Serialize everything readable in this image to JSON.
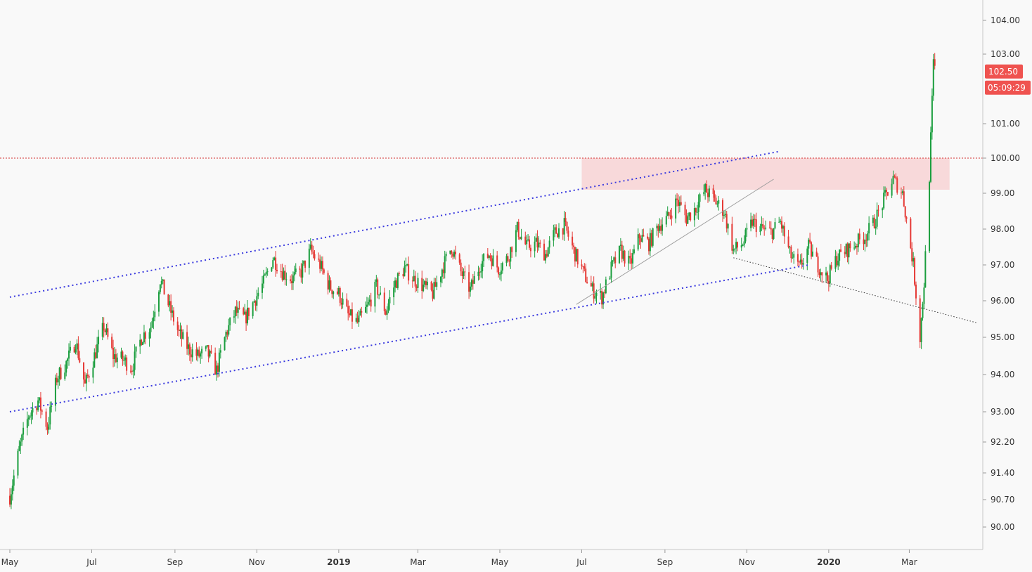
{
  "chart_data": {
    "type": "candlestick",
    "title": "",
    "xlabel": "",
    "ylabel": "",
    "x_range": [
      "2018-05-01",
      "2020-04-30"
    ],
    "y_range": [
      89.4,
      104.6
    ],
    "grid": false,
    "legend": "none",
    "y_ticks": [
      {
        "value": 104.0,
        "label": "104.00"
      },
      {
        "value": 103.0,
        "label": "103.00"
      },
      {
        "value": 101.0,
        "label": "101.00"
      },
      {
        "value": 100.0,
        "label": "100.00"
      },
      {
        "value": 99.0,
        "label": "99.00"
      },
      {
        "value": 98.0,
        "label": "98.00"
      },
      {
        "value": 97.0,
        "label": "97.00"
      },
      {
        "value": 96.0,
        "label": "96.00"
      },
      {
        "value": 95.0,
        "label": "95.00"
      },
      {
        "value": 94.0,
        "label": "94.00"
      },
      {
        "value": 93.0,
        "label": "93.00"
      },
      {
        "value": 92.2,
        "label": "92.20"
      },
      {
        "value": 91.4,
        "label": "91.40"
      },
      {
        "value": 90.7,
        "label": "90.70"
      },
      {
        "value": 90.0,
        "label": "90.00"
      }
    ],
    "x_ticks": [
      {
        "date": "2018-05-01",
        "label": "May",
        "bold": false
      },
      {
        "date": "2018-07-01",
        "label": "Jul",
        "bold": false
      },
      {
        "date": "2018-09-01",
        "label": "Sep",
        "bold": false
      },
      {
        "date": "2018-11-01",
        "label": "Nov",
        "bold": false
      },
      {
        "date": "2019-01-01",
        "label": "2019",
        "bold": true
      },
      {
        "date": "2019-03-01",
        "label": "Mar",
        "bold": false
      },
      {
        "date": "2019-05-01",
        "label": "May",
        "bold": false
      },
      {
        "date": "2019-07-01",
        "label": "Jul",
        "bold": false
      },
      {
        "date": "2019-09-01",
        "label": "Sep",
        "bold": false
      },
      {
        "date": "2019-11-01",
        "label": "Nov",
        "bold": false
      },
      {
        "date": "2020-01-01",
        "label": "2020",
        "bold": true
      },
      {
        "date": "2020-03-01",
        "label": "Mar",
        "bold": false
      }
    ],
    "price_path": [
      [
        "2018-05-01",
        90.8
      ],
      [
        "2018-05-08",
        92.0
      ],
      [
        "2018-05-15",
        92.9
      ],
      [
        "2018-05-22",
        93.3
      ],
      [
        "2018-05-29",
        92.6
      ],
      [
        "2018-06-05",
        93.9
      ],
      [
        "2018-06-12",
        94.3
      ],
      [
        "2018-06-19",
        94.9
      ],
      [
        "2018-06-26",
        93.7
      ],
      [
        "2018-07-03",
        94.5
      ],
      [
        "2018-07-10",
        95.3
      ],
      [
        "2018-07-17",
        94.5
      ],
      [
        "2018-07-24",
        94.4
      ],
      [
        "2018-07-31",
        94.2
      ],
      [
        "2018-08-07",
        95.0
      ],
      [
        "2018-08-14",
        95.3
      ],
      [
        "2018-08-21",
        96.6
      ],
      [
        "2018-08-28",
        95.8
      ],
      [
        "2018-09-04",
        95.1
      ],
      [
        "2018-09-11",
        94.7
      ],
      [
        "2018-09-18",
        94.5
      ],
      [
        "2018-09-25",
        94.6
      ],
      [
        "2018-10-02",
        94.1
      ],
      [
        "2018-10-09",
        95.1
      ],
      [
        "2018-10-16",
        95.7
      ],
      [
        "2018-10-23",
        95.5
      ],
      [
        "2018-10-30",
        96.0
      ],
      [
        "2018-11-06",
        96.5
      ],
      [
        "2018-11-13",
        97.2
      ],
      [
        "2018-11-20",
        96.8
      ],
      [
        "2018-11-27",
        96.6
      ],
      [
        "2018-12-04",
        96.8
      ],
      [
        "2018-12-11",
        97.4
      ],
      [
        "2018-12-18",
        97.0
      ],
      [
        "2018-12-25",
        96.4
      ],
      [
        "2019-01-01",
        96.2
      ],
      [
        "2019-01-08",
        95.6
      ],
      [
        "2019-01-15",
        95.4
      ],
      [
        "2019-01-22",
        95.8
      ],
      [
        "2019-01-29",
        96.4
      ],
      [
        "2019-02-05",
        95.7
      ],
      [
        "2019-02-12",
        96.5
      ],
      [
        "2019-02-19",
        96.9
      ],
      [
        "2019-02-26",
        96.6
      ],
      [
        "2019-03-05",
        96.4
      ],
      [
        "2019-03-12",
        96.2
      ],
      [
        "2019-03-19",
        96.9
      ],
      [
        "2019-03-26",
        97.5
      ],
      [
        "2019-04-02",
        96.8
      ],
      [
        "2019-04-09",
        96.3
      ],
      [
        "2019-04-16",
        97.0
      ],
      [
        "2019-04-23",
        97.3
      ],
      [
        "2019-04-30",
        96.9
      ],
      [
        "2019-05-07",
        97.2
      ],
      [
        "2019-05-14",
        98.0
      ],
      [
        "2019-05-21",
        97.5
      ],
      [
        "2019-05-28",
        97.6
      ],
      [
        "2019-06-04",
        97.3
      ],
      [
        "2019-06-11",
        97.9
      ],
      [
        "2019-06-18",
        98.1
      ],
      [
        "2019-06-25",
        97.4
      ],
      [
        "2019-07-02",
        96.8
      ],
      [
        "2019-07-09",
        96.3
      ],
      [
        "2019-07-16",
        96.1
      ],
      [
        "2019-07-23",
        96.9
      ],
      [
        "2019-07-30",
        97.4
      ],
      [
        "2019-08-06",
        97.0
      ],
      [
        "2019-08-13",
        97.8
      ],
      [
        "2019-08-20",
        97.6
      ],
      [
        "2019-08-27",
        98.1
      ],
      [
        "2019-09-03",
        98.3
      ],
      [
        "2019-09-10",
        98.8
      ],
      [
        "2019-09-17",
        98.3
      ],
      [
        "2019-09-24",
        98.6
      ],
      [
        "2019-10-01",
        99.1
      ],
      [
        "2019-10-08",
        98.8
      ],
      [
        "2019-10-15",
        98.5
      ],
      [
        "2019-10-22",
        97.4
      ],
      [
        "2019-10-29",
        97.6
      ],
      [
        "2019-11-05",
        98.2
      ],
      [
        "2019-11-12",
        98.0
      ],
      [
        "2019-11-19",
        97.9
      ],
      [
        "2019-11-26",
        98.2
      ],
      [
        "2019-12-03",
        97.3
      ],
      [
        "2019-12-10",
        96.9
      ],
      [
        "2019-12-17",
        97.5
      ],
      [
        "2019-12-24",
        97.0
      ],
      [
        "2019-12-31",
        96.6
      ],
      [
        "2020-01-07",
        97.2
      ],
      [
        "2020-01-14",
        97.4
      ],
      [
        "2020-01-21",
        97.6
      ],
      [
        "2020-01-28",
        97.8
      ],
      [
        "2020-02-04",
        98.2
      ],
      [
        "2020-02-11",
        98.8
      ],
      [
        "2020-02-18",
        99.4
      ],
      [
        "2020-02-25",
        99.0
      ],
      [
        "2020-02-29",
        98.0
      ],
      [
        "2020-03-04",
        97.0
      ],
      [
        "2020-03-09",
        95.0
      ],
      [
        "2020-03-12",
        96.5
      ],
      [
        "2020-03-16",
        99.5
      ],
      [
        "2020-03-19",
        102.7
      ],
      [
        "2020-03-21",
        102.5
      ]
    ],
    "annotations": {
      "resistance_line": {
        "value": 100.0,
        "color": "#d32f2f"
      },
      "supply_zone": {
        "from": "2019-07-01",
        "to": "2020-03-31",
        "low": 99.1,
        "high": 100.0,
        "color": "#f8d3d5"
      },
      "channel_upper": {
        "from": [
          "2018-05-01",
          96.1
        ],
        "to": [
          "2019-11-26",
          100.2
        ],
        "color": "#3b3bdf"
      },
      "channel_lower": {
        "from": [
          "2018-05-01",
          93.0
        ],
        "to": [
          "2019-12-17",
          97.0
        ],
        "color": "#3b3bdf"
      },
      "trendline_up": {
        "from": [
          "2019-06-27",
          95.9
        ],
        "to": [
          "2019-11-21",
          99.4
        ],
        "color": "#9e9e9e"
      },
      "trendline_down": {
        "from": [
          "2019-10-22",
          97.2
        ],
        "to": [
          "2020-04-20",
          95.4
        ],
        "color": "#333333"
      }
    },
    "last_price": {
      "value": 102.5,
      "label": "102.50",
      "countdown": "05:09:29",
      "color": "#ef5350"
    },
    "colors": {
      "up": "#26a69a",
      "up_body": "#1b9e3e",
      "down": "#e53935"
    }
  }
}
